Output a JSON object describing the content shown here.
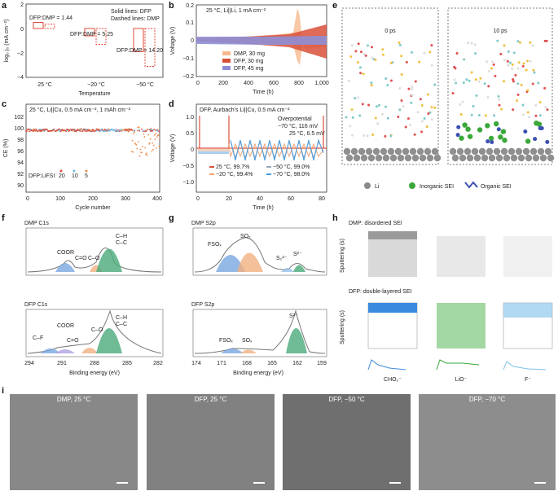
{
  "panel_letters": [
    "a",
    "b",
    "c",
    "d",
    "e",
    "f",
    "g",
    "h",
    "i"
  ],
  "a": {
    "ylabel": "log₀ j₀ (mA cm⁻²)",
    "xlabel": "Temperature",
    "legend": [
      "Solid lines: DFP",
      "Dashed lines: DMP"
    ],
    "annotations": [
      "DFP:DMP = 1.44",
      "DFP:DMP = 5.25",
      "DFP:DMP = 14.20"
    ],
    "chart_data": {
      "type": "bar",
      "categories": [
        "25 °C",
        "−20 °C",
        "−50 °C"
      ],
      "series": [
        {
          "name": "DFP",
          "values": [
            0.5,
            -0.6,
            -1.9
          ],
          "color": "#e0483a"
        },
        {
          "name": "DMP",
          "values": [
            0.35,
            -1.3,
            -3.1
          ],
          "color": "#e0483a"
        }
      ],
      "ylim": [
        -4,
        2
      ],
      "yticks": [
        "2",
        "0",
        "−2",
        "−4"
      ]
    }
  },
  "b": {
    "title": "25 °C, Li||Li, 1 mA cm⁻²",
    "ylabel": "Voltage (V)",
    "xlabel": "Time (h)",
    "xticks": [
      "0",
      "200",
      "400",
      "600",
      "800",
      "1,000"
    ],
    "yticks": [
      "0.2",
      "0.1",
      "0",
      "−0.1",
      "−0.2"
    ],
    "legend": [
      "DMP, 30 mg",
      "DFP, 30 mg",
      "DFP, 45 mg"
    ],
    "colors": [
      "#f6b98c",
      "#d9503a",
      "#8e8fd6"
    ]
  },
  "c": {
    "title": "25 °C, Li||Cu, 0.5 mA cm⁻², 1 mAh cm⁻²",
    "ylabel": "CE (%)",
    "xlabel": "Cycle number",
    "xticks": [
      "0",
      "100",
      "200",
      "300",
      "400"
    ],
    "yticks": [
      "102",
      "100",
      "98",
      "96",
      "94",
      "92",
      "90"
    ],
    "legend_title": "DFP:LiFSI",
    "legend": [
      "20",
      "10",
      "5"
    ],
    "colors": [
      "#d9503a",
      "#6fb6e8",
      "#f09050"
    ]
  },
  "d": {
    "title": "DFP, Aurbach's Li||Cu, 0.5 mA cm⁻²",
    "ylabel": "Voltage (V)",
    "xlabel": "Time (h)",
    "xticks": [
      "0",
      "20",
      "40",
      "60",
      "80"
    ],
    "yticks": [
      "1.0",
      "0.5",
      "0",
      "−0.5",
      "−1.0"
    ],
    "annot_over": "Overpotential",
    "annot_1": "−70 °C, 116 mV",
    "annot_2": "25 °C, 6.5 mV",
    "legend": [
      "25 °C, 99.7%",
      "−20 °C, 99.4%",
      "−50 °C, 99.0%",
      "−70 °C, 98.0%"
    ],
    "colors": [
      "#d9503a",
      "#f0a070",
      "#9aa6b8",
      "#4a9ee0"
    ]
  },
  "e": {
    "label_0": "0 ps",
    "label_10": "10 ps",
    "legend": [
      "Li",
      "Inorganic SEI",
      "Organic SEI"
    ]
  },
  "f": {
    "top_title": "DMP C1s",
    "bottom_title": "DFP C1s",
    "top_peaks": [
      "COOR",
      "C=O",
      "C–O",
      "C–H",
      "C–C"
    ],
    "bottom_peaks": [
      "COOR",
      "C–F",
      "C=O",
      "C–O",
      "C–H",
      "C–C"
    ],
    "xlabel": "Binding energy (eV)",
    "xticks": [
      "294",
      "291",
      "288",
      "285",
      "282"
    ]
  },
  "g": {
    "top_title": "DMP S2p",
    "bottom_title": "DFP S2p",
    "top_peaks": [
      "FSOₓ",
      "SOₓ",
      "S₂²⁻",
      "S²⁻"
    ],
    "bottom_peaks": [
      "FSOₓ",
      "SOₓ",
      "S²⁻"
    ],
    "xlabel": "Binding energy (eV)",
    "xticks": [
      "174",
      "171",
      "168",
      "165",
      "162",
      "159"
    ]
  },
  "h": {
    "top_title": "DMP: disordered SEI",
    "bottom_title": "DFP: double-layered SEI",
    "axis_label": "Sputtering (s)",
    "species": [
      "CHO₂⁻",
      "LiO⁻",
      "F⁻"
    ]
  },
  "i": {
    "captions": [
      "DMP, 25 °C",
      "DFP, 25 °C",
      "DFP, −50 °C",
      "DFP, −70 °C"
    ]
  }
}
